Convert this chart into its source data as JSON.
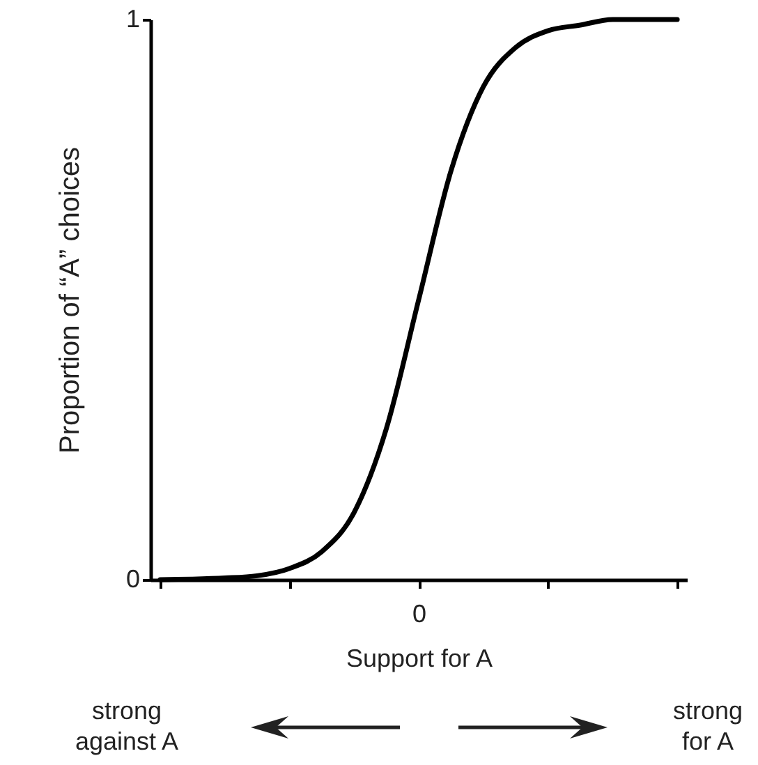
{
  "chart_data": {
    "type": "line",
    "xlabel": "Support for A",
    "ylabel": "Proportion of “A” choices",
    "categories": [
      null,
      null,
      null,
      null,
      null,
      null,
      null,
      null,
      "0",
      null,
      null,
      null,
      null,
      null,
      null,
      null,
      null
    ],
    "series": [
      {
        "color": "#000000",
        "values": [
          0,
          0.001,
          0.003,
          0.007,
          0.02,
          0.05,
          0.12,
          0.27,
          0.5,
          0.73,
          0.88,
          0.95,
          0.98,
          0.99,
          1,
          1,
          1
        ]
      }
    ],
    "ylim": [
      0,
      1
    ],
    "yticks": [
      0,
      1
    ],
    "annotations": [
      "strong against A",
      "strong for A"
    ]
  }
}
